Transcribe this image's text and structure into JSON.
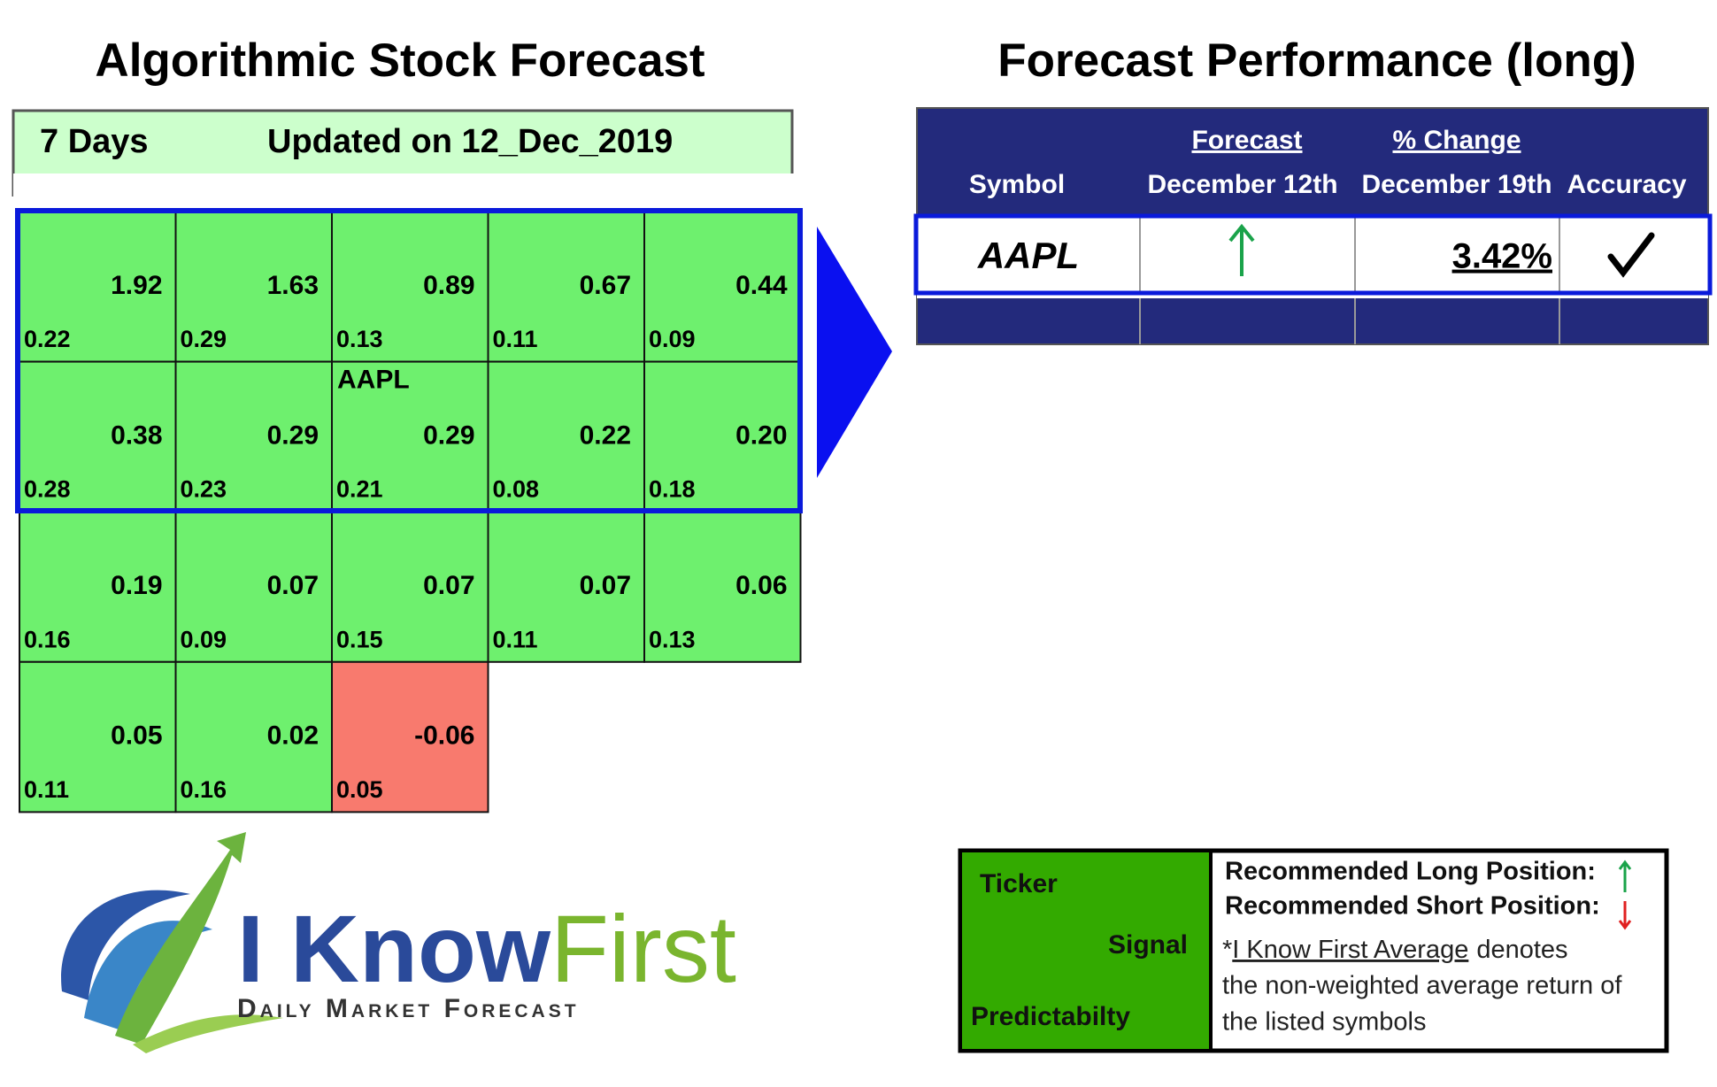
{
  "forecast": {
    "title": "Algorithmic Stock Forecast",
    "period": "7 Days",
    "updated": "Updated on 12_Dec_2019",
    "cells": [
      {
        "signal": "1.92",
        "predictability": "0.22"
      },
      {
        "signal": "1.63",
        "predictability": "0.29"
      },
      {
        "signal": "0.89",
        "predictability": "0.13"
      },
      {
        "signal": "0.67",
        "predictability": "0.11"
      },
      {
        "signal": "0.44",
        "predictability": "0.09"
      },
      {
        "signal": "0.38",
        "predictability": "0.28"
      },
      {
        "signal": "0.29",
        "predictability": "0.23"
      },
      {
        "ticker": "AAPL",
        "signal": "0.29",
        "predictability": "0.21"
      },
      {
        "signal": "0.22",
        "predictability": "0.08"
      },
      {
        "signal": "0.20",
        "predictability": "0.18"
      },
      {
        "signal": "0.19",
        "predictability": "0.16"
      },
      {
        "signal": "0.07",
        "predictability": "0.09"
      },
      {
        "signal": "0.07",
        "predictability": "0.15"
      },
      {
        "signal": "0.07",
        "predictability": "0.11"
      },
      {
        "signal": "0.06",
        "predictability": "0.13"
      },
      {
        "signal": "0.05",
        "predictability": "0.11"
      },
      {
        "signal": "0.02",
        "predictability": "0.16"
      },
      {
        "signal": "-0.06",
        "predictability": "0.05"
      }
    ]
  },
  "performance": {
    "title": "Forecast Performance (long)",
    "headers": {
      "symbol": "Symbol",
      "forecast": "Forecast",
      "forecast_date": "December 12th",
      "change": "% Change",
      "change_date": "December 19th",
      "accuracy": "Accuracy"
    },
    "rows": [
      {
        "symbol": "AAPL",
        "change": "3.42%"
      }
    ]
  },
  "legend": {
    "ticker": "Ticker",
    "signal": "Signal",
    "predictability": "Predictabilty",
    "long": "Recommended Long Position:",
    "short": "Recommended Short Position:",
    "note_mark": "*",
    "note_link": "I Know First Average",
    "note_line1": "denotes",
    "note_line2": "the non-weighted average return of",
    "note_line3": "the listed symbols"
  },
  "logo": {
    "name1": "I Know",
    "name2": "First",
    "tagline": "Daily Market Forecast"
  }
}
